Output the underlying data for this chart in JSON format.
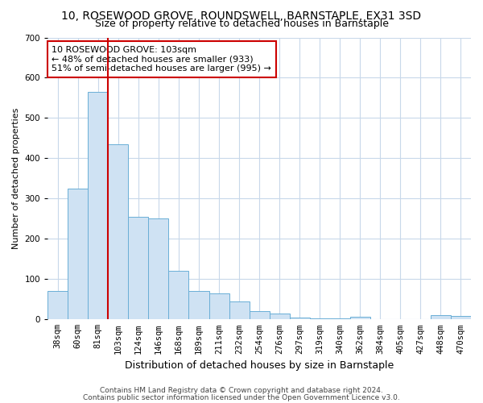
{
  "title": "10, ROSEWOOD GROVE, ROUNDSWELL, BARNSTAPLE, EX31 3SD",
  "subtitle": "Size of property relative to detached houses in Barnstaple",
  "xlabel": "Distribution of detached houses by size in Barnstaple",
  "ylabel": "Number of detached properties",
  "categories": [
    "38sqm",
    "60sqm",
    "81sqm",
    "103sqm",
    "124sqm",
    "146sqm",
    "168sqm",
    "189sqm",
    "211sqm",
    "232sqm",
    "254sqm",
    "276sqm",
    "297sqm",
    "319sqm",
    "340sqm",
    "362sqm",
    "384sqm",
    "405sqm",
    "427sqm",
    "448sqm",
    "470sqm"
  ],
  "values": [
    70,
    325,
    565,
    435,
    255,
    250,
    120,
    70,
    65,
    45,
    20,
    15,
    4,
    2,
    2,
    7,
    0,
    0,
    0,
    10,
    8
  ],
  "bar_color": "#cfe2f3",
  "bar_edge_color": "#6aaed6",
  "vline_color": "#cc0000",
  "vline_position": 2.5,
  "annotation_text": "10 ROSEWOOD GROVE: 103sqm\n← 48% of detached houses are smaller (933)\n51% of semi-detached houses are larger (995) →",
  "annotation_box_color": "#ffffff",
  "annotation_box_edge": "#cc0000",
  "footer1": "Contains HM Land Registry data © Crown copyright and database right 2024.",
  "footer2": "Contains public sector information licensed under the Open Government Licence v3.0.",
  "ylim": [
    0,
    700
  ],
  "yticks": [
    0,
    100,
    200,
    300,
    400,
    500,
    600,
    700
  ],
  "background_color": "#ffffff",
  "grid_color": "#c8d8ea",
  "title_fontsize": 10,
  "subtitle_fontsize": 9,
  "ylabel_fontsize": 8,
  "xlabel_fontsize": 9,
  "tick_fontsize": 7.5,
  "footer_fontsize": 6.5
}
